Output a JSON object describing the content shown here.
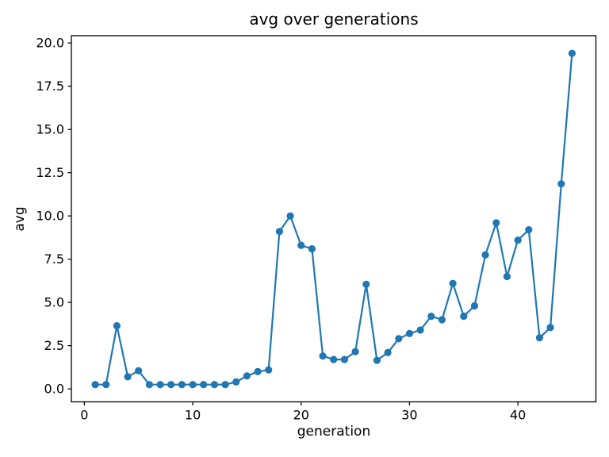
{
  "chart_data": {
    "type": "line",
    "title": "avg over generations",
    "xlabel": "generation",
    "ylabel": "avg",
    "grid": false,
    "legend": "none",
    "line_color": "#1f77b4",
    "marker": "circle",
    "frame_color": "#000000",
    "text_color": "#000000",
    "xlim": [
      -1.2,
      47.2
    ],
    "ylim": [
      -0.75,
      20.42
    ],
    "xticks": [
      {
        "v": 0,
        "label": "0"
      },
      {
        "v": 10,
        "label": "10"
      },
      {
        "v": 20,
        "label": "20"
      },
      {
        "v": 30,
        "label": "30"
      },
      {
        "v": 40,
        "label": "40"
      }
    ],
    "yticks": [
      {
        "v": 0,
        "label": "0.0"
      },
      {
        "v": 2.5,
        "label": "2.5"
      },
      {
        "v": 5,
        "label": "5.0"
      },
      {
        "v": 7.5,
        "label": "7.5"
      },
      {
        "v": 10,
        "label": "10.0"
      },
      {
        "v": 12.5,
        "label": "12.5"
      },
      {
        "v": 15,
        "label": "15.0"
      },
      {
        "v": 17.5,
        "label": "17.5"
      },
      {
        "v": 20,
        "label": "20.0"
      }
    ],
    "x": [
      1,
      2,
      3,
      4,
      5,
      6,
      7,
      8,
      9,
      10,
      11,
      12,
      13,
      14,
      15,
      16,
      17,
      18,
      19,
      20,
      21,
      22,
      23,
      24,
      25,
      26,
      27,
      28,
      29,
      30,
      31,
      32,
      33,
      34,
      35,
      36,
      37,
      38,
      39,
      40,
      41,
      42,
      43,
      44,
      45
    ],
    "series": [
      {
        "name": "avg",
        "values": [
          0.25,
          0.25,
          3.65,
          0.7,
          1.05,
          0.25,
          0.25,
          0.25,
          0.25,
          0.25,
          0.25,
          0.25,
          0.25,
          0.4,
          0.75,
          1.0,
          1.1,
          9.1,
          10.0,
          8.3,
          8.1,
          1.9,
          1.7,
          1.7,
          2.15,
          6.05,
          1.65,
          2.1,
          2.9,
          3.2,
          3.4,
          4.2,
          4.0,
          6.1,
          4.2,
          4.8,
          7.75,
          9.6,
          6.5,
          8.6,
          9.2,
          2.95,
          3.55,
          11.85,
          19.4
        ]
      }
    ]
  }
}
